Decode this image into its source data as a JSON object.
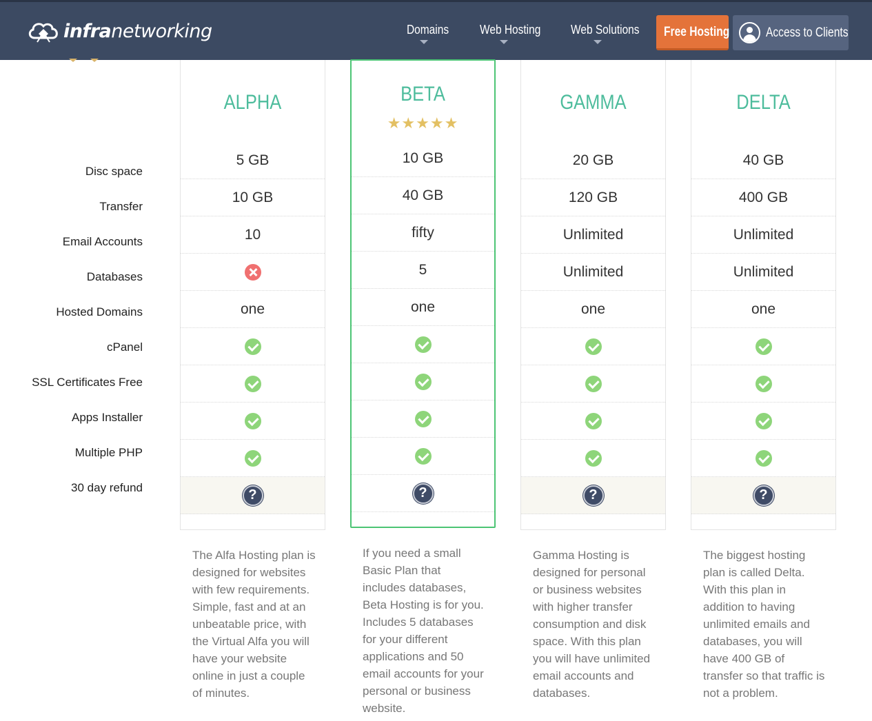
{
  "header": {
    "logo_bold": "infra",
    "logo_light": "networking",
    "nav": [
      "Domains",
      "Web Hosting",
      "Web Solutions"
    ],
    "free_hosting": "Free Hosting",
    "access_clients": "Access to Clients"
  },
  "features": [
    "Disc space",
    "Transfer",
    "Email Accounts",
    "Databases",
    "Hosted Domains",
    "cPanel",
    "SSL Certificates Free",
    "Apps Installer",
    "Multiple PHP",
    "30 day refund"
  ],
  "plans": [
    {
      "name": "ALPHA",
      "disc": "5 GB",
      "transfer": "10 GB",
      "email": "10",
      "db": "",
      "domains": "one",
      "db_icon": "cross-icon",
      "description": "The Alfa Hosting plan is designed for websites with few requirements. Simple, fast and at an unbeatable price, with the Virtual Alfa you will have your website online in just a couple of minutes."
    },
    {
      "name": "BETA",
      "stars": "★★★★★",
      "rating": 5,
      "disc": "10 GB",
      "transfer": "40 GB",
      "email": "fifty",
      "db": "5",
      "domains": "one",
      "description": "If you need a small Basic Plan that includes databases, Beta Hosting is for you. Includes 5 databases for your different applications and 50 email accounts for your personal or business website."
    },
    {
      "name": "GAMMA",
      "disc": "20 GB",
      "transfer": "120 GB",
      "email": "Unlimited",
      "db": "Unlimited",
      "domains": "one",
      "description": "Gamma Hosting is designed for personal or business websites with higher transfer consumption and disk space. With this plan you will have unlimited email accounts and databases."
    },
    {
      "name": "DELTA",
      "disc": "40 GB",
      "transfer": "400 GB",
      "email": "Unlimited",
      "db": "Unlimited",
      "domains": "one",
      "description": "The biggest hosting plan is called Delta. With this plan in addition to having unlimited emails and databases, you will have 400 GB of transfer so that traffic is not a problem."
    }
  ],
  "icons": {
    "check": "check-icon",
    "cross": "cross-icon",
    "help": "question-icon"
  },
  "help_glyph": "?",
  "colors": {
    "header": "#3c4a62",
    "accent_orange": "#e4733a",
    "plan_title": "#4dbc9c",
    "featured_border": "#4cc474"
  }
}
